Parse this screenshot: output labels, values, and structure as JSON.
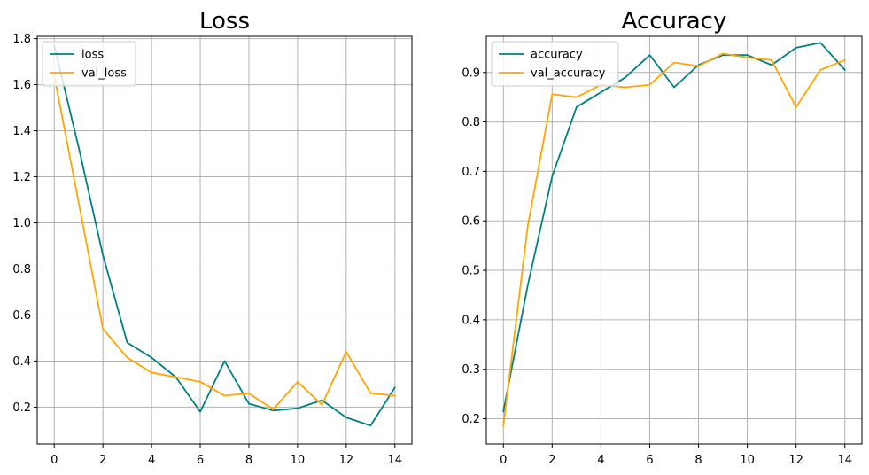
{
  "colors": {
    "train": "#008080",
    "val": "#FFA500",
    "grid": "#b0b0b0"
  },
  "chart_data": [
    {
      "type": "line",
      "title": "Loss",
      "xlabel": "",
      "ylabel": "",
      "grid": true,
      "legend_position": "top-left",
      "xlim": [
        -0.7,
        14.7
      ],
      "ylim": [
        0.04,
        1.81
      ],
      "xticks": [
        0,
        2,
        4,
        6,
        8,
        10,
        12,
        14
      ],
      "yticks": [
        0.2,
        0.4,
        0.6,
        0.8,
        1.0,
        1.2,
        1.4,
        1.6,
        1.8
      ],
      "x": [
        0,
        1,
        2,
        3,
        4,
        5,
        6,
        7,
        8,
        9,
        10,
        11,
        12,
        13,
        14
      ],
      "series": [
        {
          "name": "loss",
          "color": "#008080",
          "values": [
            1.77,
            1.33,
            0.86,
            0.48,
            0.415,
            0.33,
            0.18,
            0.4,
            0.215,
            0.185,
            0.195,
            0.23,
            0.155,
            0.12,
            0.285
          ]
        },
        {
          "name": "val_loss",
          "color": "#FFA500",
          "values": [
            1.64,
            1.09,
            0.54,
            0.415,
            0.35,
            0.33,
            0.31,
            0.25,
            0.26,
            0.19,
            0.31,
            0.21,
            0.44,
            0.26,
            0.25
          ]
        }
      ]
    },
    {
      "type": "line",
      "title": "Accuracy",
      "xlabel": "",
      "ylabel": "",
      "grid": true,
      "legend_position": "top-left",
      "xlim": [
        -0.7,
        14.7
      ],
      "ylim": [
        0.149,
        0.973
      ],
      "xticks": [
        0,
        2,
        4,
        6,
        8,
        10,
        12,
        14
      ],
      "yticks": [
        0.2,
        0.3,
        0.4,
        0.5,
        0.6,
        0.7,
        0.8,
        0.9
      ],
      "x": [
        0,
        1,
        2,
        3,
        4,
        5,
        6,
        7,
        8,
        9,
        10,
        11,
        12,
        13,
        14
      ],
      "series": [
        {
          "name": "accuracy",
          "color": "#008080",
          "values": [
            0.215,
            0.47,
            0.69,
            0.83,
            0.86,
            0.89,
            0.935,
            0.87,
            0.915,
            0.935,
            0.935,
            0.915,
            0.95,
            0.96,
            0.905
          ]
        },
        {
          "name": "val_accuracy",
          "color": "#FFA500",
          "values": [
            0.186,
            0.59,
            0.856,
            0.85,
            0.875,
            0.87,
            0.875,
            0.92,
            0.913,
            0.938,
            0.93,
            0.925,
            0.83,
            0.905,
            0.925
          ]
        }
      ]
    }
  ]
}
